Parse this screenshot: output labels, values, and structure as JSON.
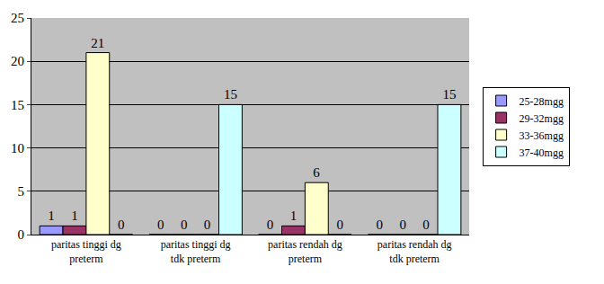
{
  "chart_data": {
    "type": "bar",
    "categories": [
      "paritas tinggi dg preterm",
      "paritas tinggi dg tdk preterm",
      "paritas rendah dg preterm",
      "paritas rendah dg tdk preterm"
    ],
    "series": [
      {
        "name": "25-28mgg",
        "color": "#9999ff",
        "values": [
          1,
          0,
          0,
          0
        ]
      },
      {
        "name": "29-32mgg",
        "color": "#993366",
        "values": [
          1,
          0,
          1,
          0
        ]
      },
      {
        "name": "33-36mgg",
        "color": "#ffffcc",
        "values": [
          21,
          0,
          6,
          0
        ]
      },
      {
        "name": "37-40mgg",
        "color": "#ccffff",
        "values": [
          0,
          15,
          0,
          15
        ]
      }
    ],
    "ylim": [
      0,
      25
    ],
    "yticks": [
      0,
      5,
      10,
      15,
      20,
      25
    ],
    "grid": true,
    "data_labels": true,
    "legend": "right"
  }
}
